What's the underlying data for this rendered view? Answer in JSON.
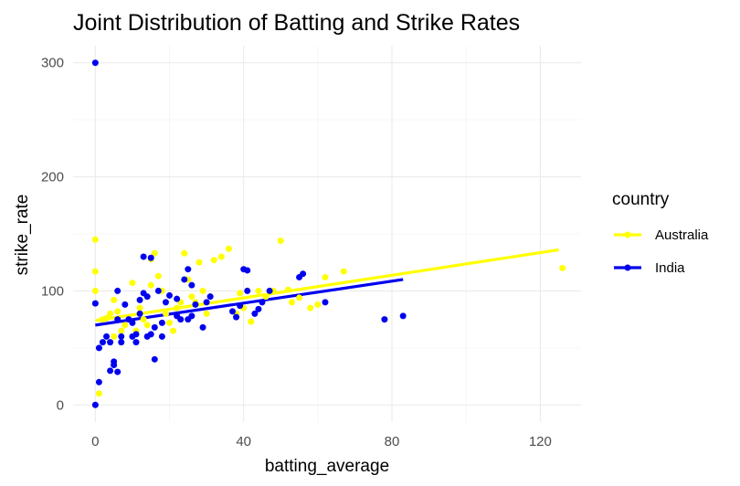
{
  "chart_data": {
    "type": "scatter",
    "title": "Joint Distribution of Batting and Strike Rates",
    "xlabel": "batting_average",
    "ylabel": "strike_rate",
    "xlim": [
      -6,
      131
    ],
    "ylim": [
      -15,
      315
    ],
    "x_ticks": [
      0,
      40,
      80,
      120
    ],
    "y_ticks": [
      0,
      100,
      200,
      300
    ],
    "grid": true,
    "legend": {
      "title": "country",
      "placement": "right"
    },
    "series": [
      {
        "name": "Australia",
        "color": "#ffff00",
        "points": [
          [
            0,
            145
          ],
          [
            0,
            117
          ],
          [
            0,
            100
          ],
          [
            1,
            10
          ],
          [
            2,
            75
          ],
          [
            3,
            76
          ],
          [
            4,
            80
          ],
          [
            5,
            92
          ],
          [
            5,
            60
          ],
          [
            6,
            82
          ],
          [
            7,
            65
          ],
          [
            8,
            70
          ],
          [
            9,
            75
          ],
          [
            10,
            107
          ],
          [
            11,
            65
          ],
          [
            12,
            85
          ],
          [
            13,
            75
          ],
          [
            14,
            70
          ],
          [
            15,
            105
          ],
          [
            15,
            128
          ],
          [
            16,
            133
          ],
          [
            17,
            113
          ],
          [
            18,
            100
          ],
          [
            19,
            80
          ],
          [
            20,
            72
          ],
          [
            21,
            65
          ],
          [
            22,
            85
          ],
          [
            23,
            90
          ],
          [
            24,
            133
          ],
          [
            25,
            110
          ],
          [
            26,
            95
          ],
          [
            27,
            90
          ],
          [
            28,
            125
          ],
          [
            29,
            100
          ],
          [
            30,
            80
          ],
          [
            31,
            95
          ],
          [
            32,
            127
          ],
          [
            34,
            130
          ],
          [
            36,
            137
          ],
          [
            38,
            80
          ],
          [
            39,
            98
          ],
          [
            40,
            85
          ],
          [
            41,
            100
          ],
          [
            42,
            73
          ],
          [
            44,
            100
          ],
          [
            46,
            95
          ],
          [
            48,
            100
          ],
          [
            50,
            144
          ],
          [
            52,
            101
          ],
          [
            53,
            90
          ],
          [
            55,
            94
          ],
          [
            58,
            85
          ],
          [
            60,
            88
          ],
          [
            62,
            112
          ],
          [
            67,
            117
          ],
          [
            126,
            120
          ]
        ],
        "trend": [
          [
            0,
            74
          ],
          [
            125,
            136
          ]
        ]
      },
      {
        "name": "India",
        "color": "#0000ee",
        "points": [
          [
            0,
            300
          ],
          [
            0,
            89
          ],
          [
            0,
            0
          ],
          [
            1,
            20
          ],
          [
            1,
            50
          ],
          [
            2,
            55
          ],
          [
            3,
            60
          ],
          [
            4,
            30
          ],
          [
            4,
            55
          ],
          [
            5,
            35
          ],
          [
            5,
            38
          ],
          [
            6,
            29
          ],
          [
            6,
            75
          ],
          [
            6,
            100
          ],
          [
            7,
            55
          ],
          [
            7,
            60
          ],
          [
            8,
            88
          ],
          [
            9,
            75
          ],
          [
            10,
            60
          ],
          [
            10,
            72
          ],
          [
            11,
            55
          ],
          [
            11,
            62
          ],
          [
            12,
            80
          ],
          [
            12,
            92
          ],
          [
            13,
            130
          ],
          [
            13,
            98
          ],
          [
            14,
            60
          ],
          [
            14,
            95
          ],
          [
            15,
            129
          ],
          [
            15,
            62
          ],
          [
            16,
            68
          ],
          [
            16,
            40
          ],
          [
            17,
            100
          ],
          [
            18,
            72
          ],
          [
            18,
            60
          ],
          [
            19,
            90
          ],
          [
            20,
            96
          ],
          [
            22,
            78
          ],
          [
            22,
            93
          ],
          [
            23,
            75
          ],
          [
            24,
            110
          ],
          [
            25,
            119
          ],
          [
            25,
            75
          ],
          [
            26,
            105
          ],
          [
            26,
            78
          ],
          [
            27,
            88
          ],
          [
            29,
            68
          ],
          [
            30,
            90
          ],
          [
            31,
            95
          ],
          [
            37,
            82
          ],
          [
            38,
            77
          ],
          [
            39,
            87
          ],
          [
            40,
            119
          ],
          [
            41,
            118
          ],
          [
            41,
            100
          ],
          [
            43,
            80
          ],
          [
            44,
            84
          ],
          [
            45,
            90
          ],
          [
            47,
            100
          ],
          [
            55,
            112
          ],
          [
            56,
            115
          ],
          [
            62,
            90
          ],
          [
            78,
            75
          ],
          [
            83,
            78
          ]
        ],
        "trend": [
          [
            0,
            70
          ],
          [
            83,
            110
          ]
        ]
      }
    ]
  }
}
